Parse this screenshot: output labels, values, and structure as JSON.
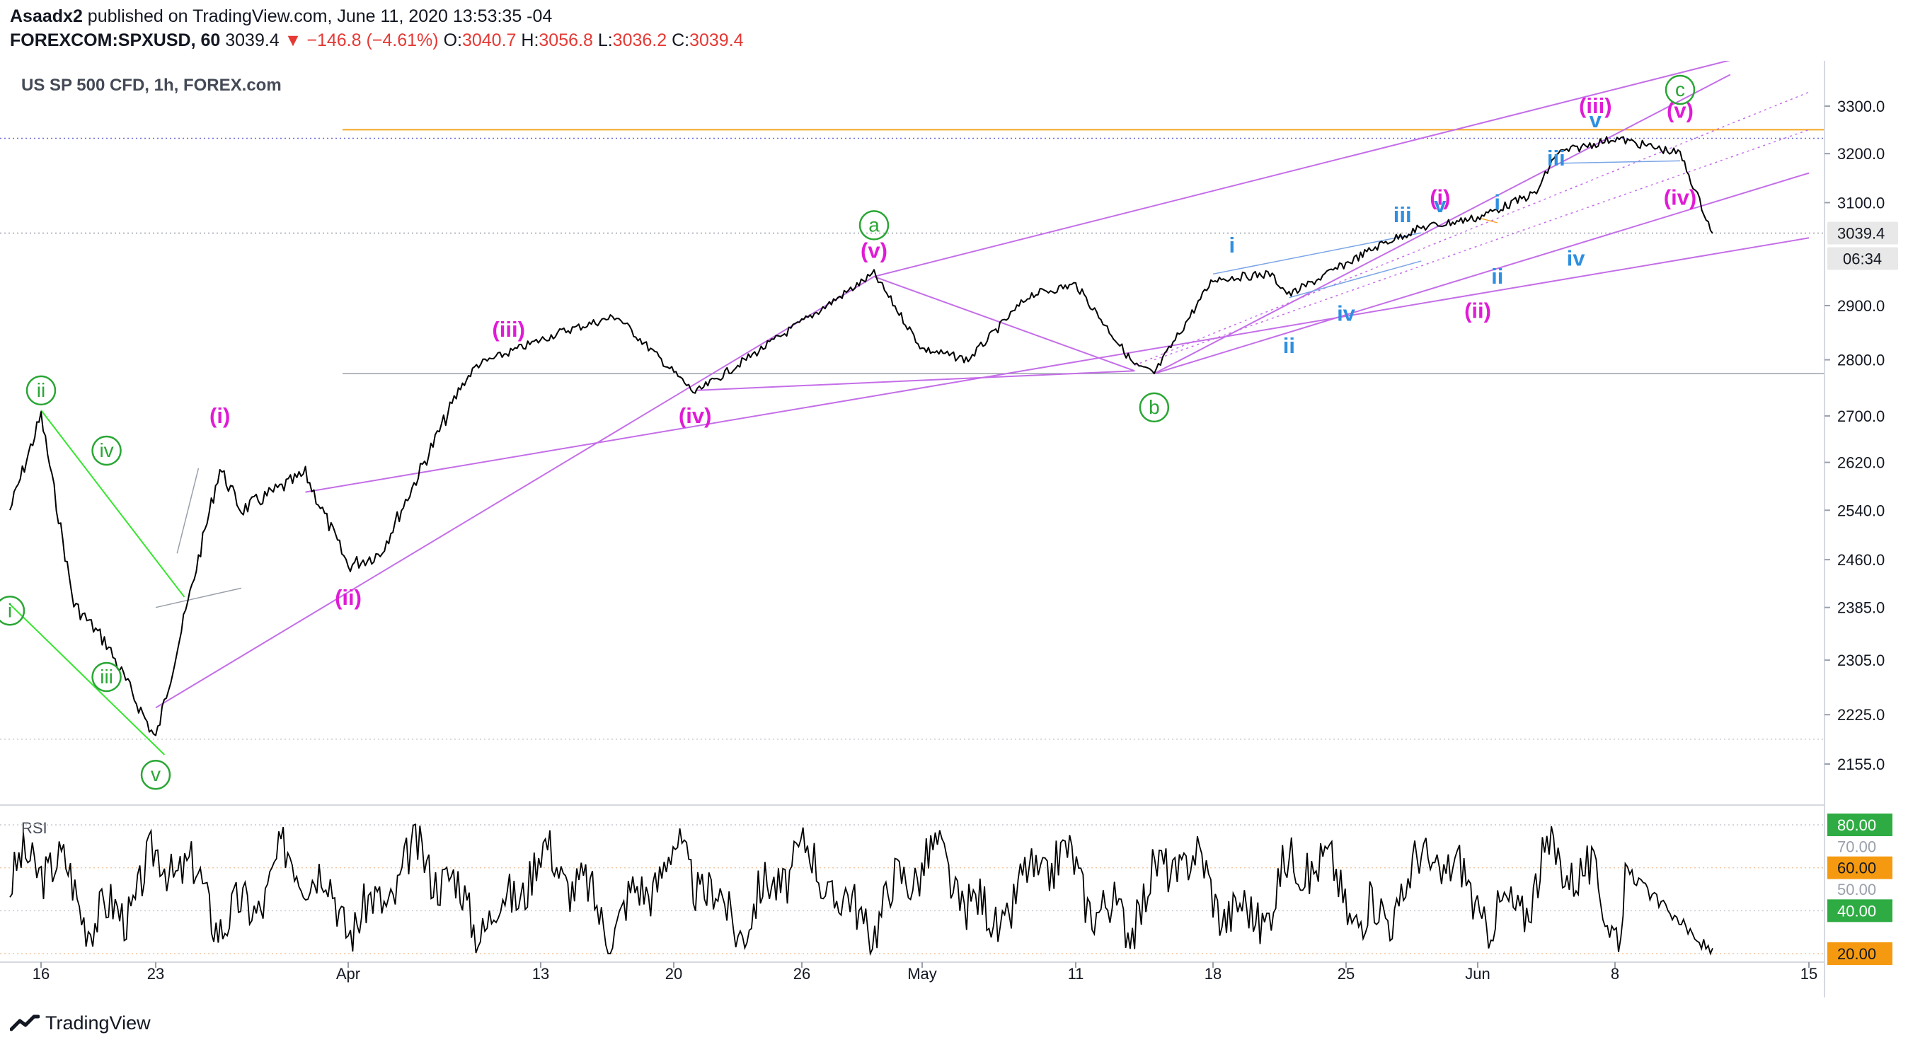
{
  "header": {
    "author": "Asaadx2",
    "published": " published on TradingView.com, June 11, 2020 13:53:35 -04",
    "symbol": "FOREXCOM:SPXUSD, 60",
    "last": "3039.4",
    "arrow": "▼",
    "change": "−146.8 (−4.61%)",
    "o_label": "O:",
    "o_value": "3040.7",
    "h_label": "H:",
    "h_value": "3056.8",
    "l_label": "L:",
    "l_value": "3036.2",
    "c_label": "C:",
    "c_value": "3039.4"
  },
  "chart_data": {
    "type": "line",
    "title": "US SP 500 CFD, 1h, FOREX.com",
    "x_ticks": [
      "16",
      "23",
      "Apr",
      "13",
      "20",
      "26",
      "May",
      "11",
      "18",
      "25",
      "Jun",
      "8",
      "15"
    ],
    "price_ticks": [
      "3300.0",
      "3200.0",
      "3100.0",
      "2900.0",
      "2800.0",
      "2700.0",
      "2620.0",
      "2540.0",
      "2460.0",
      "2385.0",
      "2305.0",
      "2225.0",
      "2155.0"
    ],
    "log_scale": true,
    "last_price_label": "3039.4",
    "countdown_label": "06:34",
    "key_points": [
      {
        "date": "Mar 13",
        "value": 2540
      },
      {
        "date": "Mar 16",
        "value": 2700
      },
      {
        "date": "Mar 18",
        "value": 2390
      },
      {
        "date": "Mar 20",
        "value": 2330
      },
      {
        "date": "Mar 23",
        "value": 2190
      },
      {
        "date": "Mar 26",
        "value": 2610
      },
      {
        "date": "Mar 27",
        "value": 2540
      },
      {
        "date": "Mar 30",
        "value": 2600
      },
      {
        "date": "Apr 1",
        "value": 2450
      },
      {
        "date": "Apr 3",
        "value": 2470
      },
      {
        "date": "Apr 8",
        "value": 2750
      },
      {
        "date": "Apr 9",
        "value": 2790
      },
      {
        "date": "Apr 14",
        "value": 2850
      },
      {
        "date": "Apr 17",
        "value": 2880
      },
      {
        "date": "Apr 21",
        "value": 2740
      },
      {
        "date": "Apr 29",
        "value": 2960
      },
      {
        "date": "May 1",
        "value": 2820
      },
      {
        "date": "May 4",
        "value": 2800
      },
      {
        "date": "May 8",
        "value": 2920
      },
      {
        "date": "May 11",
        "value": 2940
      },
      {
        "date": "May 14",
        "value": 2790
      },
      {
        "date": "May 15",
        "value": 2775
      },
      {
        "date": "May 18",
        "value": 2950
      },
      {
        "date": "May 21",
        "value": 2960
      },
      {
        "date": "May 22",
        "value": 2920
      },
      {
        "date": "May 27",
        "value": 3020
      },
      {
        "date": "May 29",
        "value": 3050
      },
      {
        "date": "Jun 1",
        "value": 3070
      },
      {
        "date": "Jun 4",
        "value": 3120
      },
      {
        "date": "Jun 5",
        "value": 3200
      },
      {
        "date": "Jun 8",
        "value": 3232
      },
      {
        "date": "Jun 10",
        "value": 3200
      },
      {
        "date": "Jun 11",
        "value": 3039
      }
    ],
    "rsi": {
      "label": "RSI",
      "ticks": [
        "80.00",
        "70.00",
        "60.00",
        "50.00",
        "40.00",
        "20.00"
      ],
      "end_value": 20
    },
    "wave_labels": [
      {
        "text": "i",
        "style": "circle-green"
      },
      {
        "text": "ii",
        "style": "circle-green"
      },
      {
        "text": "iii",
        "style": "circle-green"
      },
      {
        "text": "iv",
        "style": "circle-green"
      },
      {
        "text": "v",
        "style": "circle-green"
      },
      {
        "text": "(i)",
        "style": "magenta"
      },
      {
        "text": "(ii)",
        "style": "magenta"
      },
      {
        "text": "(iii)",
        "style": "magenta"
      },
      {
        "text": "(iv)",
        "style": "magenta"
      },
      {
        "text": "(v)",
        "style": "magenta"
      },
      {
        "text": "a",
        "style": "circle-green"
      },
      {
        "text": "b",
        "style": "circle-green"
      },
      {
        "text": "i",
        "style": "blue"
      },
      {
        "text": "ii",
        "style": "blue"
      },
      {
        "text": "iii",
        "style": "blue"
      },
      {
        "text": "iv",
        "style": "blue"
      },
      {
        "text": "v",
        "style": "blue"
      },
      {
        "text": "(i)",
        "style": "magenta"
      },
      {
        "text": "(ii)",
        "style": "magenta"
      },
      {
        "text": "i",
        "style": "blue"
      },
      {
        "text": "ii",
        "style": "blue"
      },
      {
        "text": "iii",
        "style": "blue"
      },
      {
        "text": "iv",
        "style": "blue"
      },
      {
        "text": "v",
        "style": "blue"
      },
      {
        "text": "(iii)",
        "style": "magenta"
      },
      {
        "text": "(iv)",
        "style": "magenta"
      },
      {
        "text": "(v)",
        "style": "magenta"
      },
      {
        "text": "c",
        "style": "circle-green"
      }
    ],
    "colors": {
      "price": "#000000",
      "channel": "#c46ee8",
      "wave_green": "#2aa635",
      "wave_magenta": "#e01bd6",
      "wave_blue": "#2e8fe0",
      "resistance": "#f5a623",
      "trend_green": "#35e62e",
      "rsi_80": "#2eac43",
      "rsi_60": "#f59a10",
      "rsi_40": "#2eac43",
      "rsi_20": "#f59a10",
      "last_price_bg": "#e8e8e8"
    }
  },
  "footer": {
    "brand": "TradingView"
  }
}
